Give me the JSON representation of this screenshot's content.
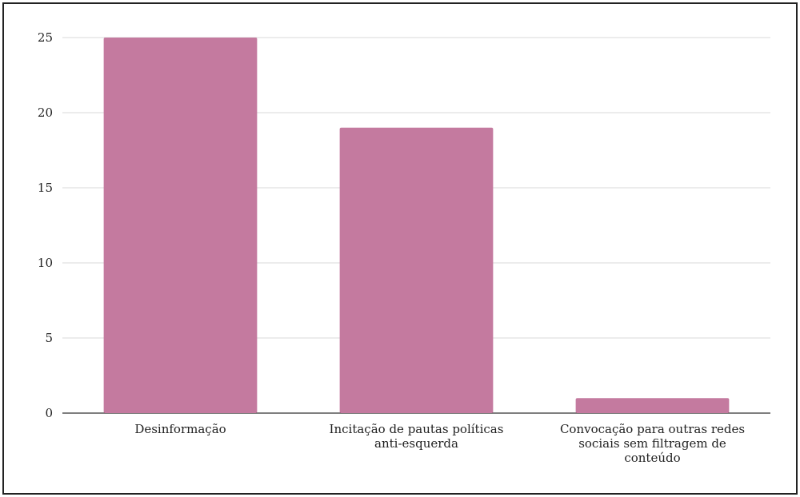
{
  "chart_data": {
    "type": "bar",
    "title": "",
    "xlabel": "",
    "ylabel": "",
    "categories": [
      [
        "Desinformação"
      ],
      [
        "Incitação de pautas políticas",
        "anti-esquerda"
      ],
      [
        "Convocação para outras redes",
        "sociais sem filtragem de",
        "conteúdo"
      ]
    ],
    "values": [
      25,
      19,
      1
    ],
    "ylim": [
      0,
      25
    ],
    "yticks": [
      0,
      5,
      10,
      15,
      20,
      25
    ],
    "grid": true,
    "legend": "none",
    "colors": {
      "bar": "#c47a9f",
      "grid": "#d9d9d9",
      "axis": "#333333"
    }
  }
}
